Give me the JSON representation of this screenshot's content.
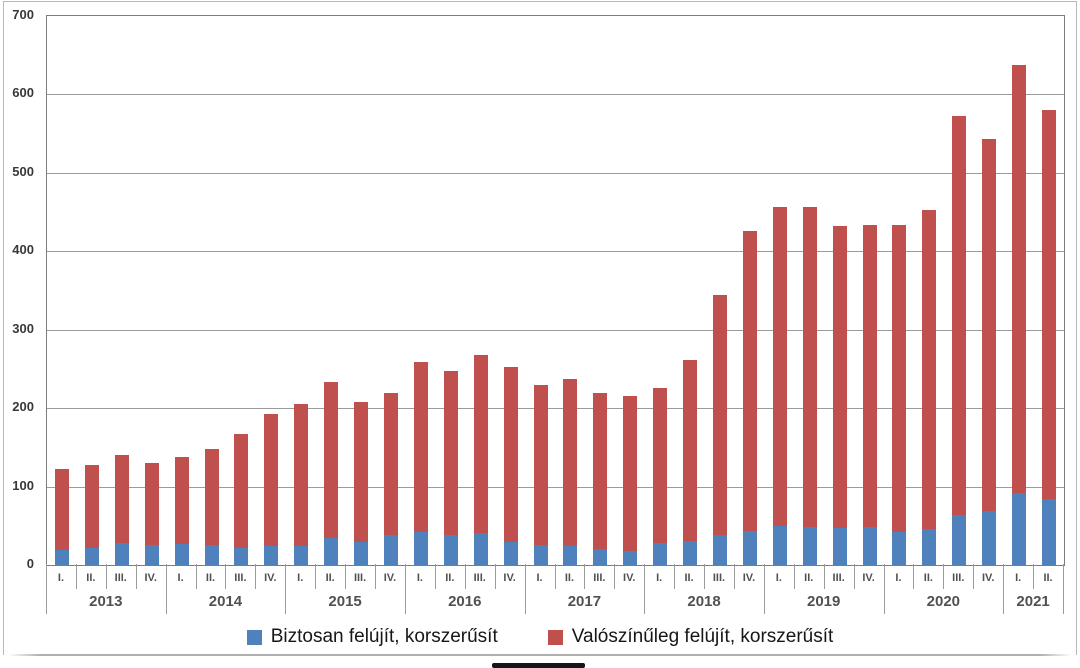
{
  "chart_data": {
    "type": "bar",
    "stacked": true,
    "grid": "horizontal",
    "legend_position": "bottom",
    "ylim": [
      0,
      700
    ],
    "ytick_interval": 100,
    "yticks": [
      0,
      100,
      200,
      300,
      400,
      500,
      600,
      700
    ],
    "years": [
      {
        "label": "2013",
        "quarters": [
          "I.",
          "II.",
          "III.",
          "IV."
        ]
      },
      {
        "label": "2014",
        "quarters": [
          "I.",
          "II.",
          "III.",
          "IV."
        ]
      },
      {
        "label": "2015",
        "quarters": [
          "I.",
          "II.",
          "III.",
          "IV."
        ]
      },
      {
        "label": "2016",
        "quarters": [
          "I.",
          "II.",
          "III.",
          "IV."
        ]
      },
      {
        "label": "2017",
        "quarters": [
          "I.",
          "II.",
          "III.",
          "IV."
        ]
      },
      {
        "label": "2018",
        "quarters": [
          "I.",
          "II.",
          "III.",
          "IV."
        ]
      },
      {
        "label": "2019",
        "quarters": [
          "I.",
          "II.",
          "III.",
          "IV."
        ]
      },
      {
        "label": "2020",
        "quarters": [
          "I.",
          "II.",
          "III.",
          "IV."
        ]
      },
      {
        "label": "2021",
        "quarters": [
          "I.",
          "II."
        ]
      }
    ],
    "series": [
      {
        "name": "Biztosan felújít, korszerűsít",
        "color": "#4F81BD",
        "values": [
          19,
          22,
          28,
          26,
          27,
          26,
          22,
          24,
          24,
          35,
          29,
          38,
          42,
          38,
          41,
          29,
          25,
          24,
          21,
          18,
          28,
          31,
          38,
          44,
          50,
          48,
          47,
          48,
          42,
          46,
          64,
          69,
          92,
          84
        ]
      },
      {
        "name": "Valószínűleg felújít, korszerűsít",
        "color": "#C0504D",
        "values": [
          104,
          105,
          112,
          104,
          111,
          122,
          145,
          169,
          181,
          199,
          179,
          181,
          217,
          209,
          227,
          224,
          205,
          213,
          198,
          197,
          198,
          230,
          306,
          382,
          407,
          409,
          385,
          386,
          392,
          407,
          508,
          474,
          545,
          496
        ]
      }
    ]
  }
}
